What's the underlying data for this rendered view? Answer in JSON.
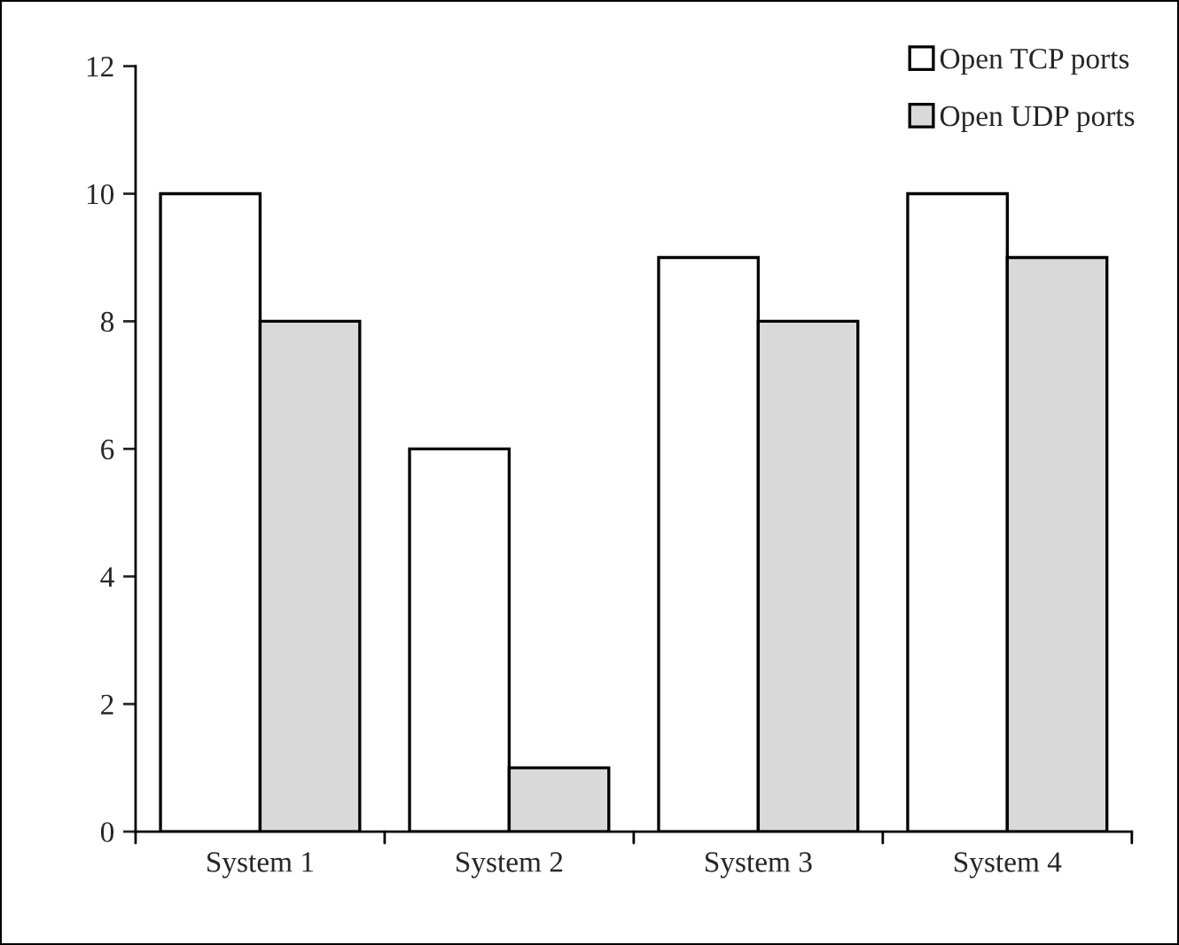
{
  "chart_data": {
    "type": "bar",
    "categories": [
      "System 1",
      "System 2",
      "System 3",
      "System 4"
    ],
    "series": [
      {
        "name": "Open TCP ports",
        "color": "#ffffff",
        "values": [
          10,
          6,
          9,
          10
        ]
      },
      {
        "name": "Open UDP ports",
        "color": "#d9d9d9",
        "values": [
          8,
          1,
          8,
          9
        ]
      }
    ],
    "ylim": [
      0,
      12
    ],
    "yticks": [
      0,
      2,
      4,
      6,
      8,
      10,
      12
    ],
    "grid": false,
    "legend": "top right"
  }
}
